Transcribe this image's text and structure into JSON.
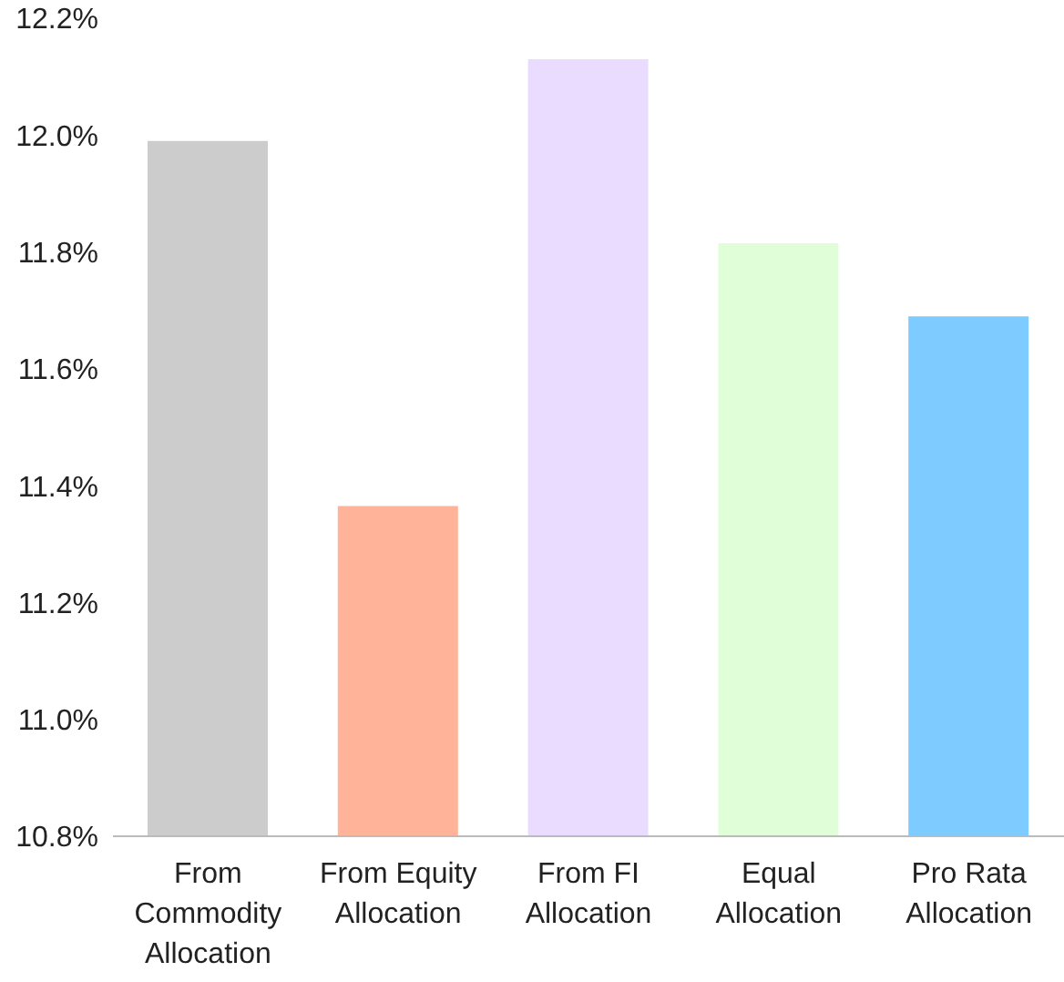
{
  "chart_data": {
    "type": "bar",
    "categories": [
      "From Commodity Allocation",
      "From Equity Allocation",
      "From FI Allocation",
      "Equal Allocation",
      "Pro Rata Allocation"
    ],
    "values": [
      11.99,
      11.365,
      12.13,
      11.815,
      11.69
    ],
    "colors": [
      "#cccccc",
      "#ffb398",
      "#eadcff",
      "#e0ffd8",
      "#7dcbff"
    ],
    "ylim": [
      10.8,
      12.2
    ],
    "yticks": [
      {
        "value": 10.8,
        "label": "10.8%"
      },
      {
        "value": 11.0,
        "label": "11.0%"
      },
      {
        "value": 11.2,
        "label": "11.2%"
      },
      {
        "value": 11.4,
        "label": "11.4%"
      },
      {
        "value": 11.6,
        "label": "11.6%"
      },
      {
        "value": 11.8,
        "label": "11.8%"
      },
      {
        "value": 12.0,
        "label": "12.0%"
      },
      {
        "value": 12.2,
        "label": "12.2%"
      }
    ],
    "grid": false,
    "legend": false
  }
}
